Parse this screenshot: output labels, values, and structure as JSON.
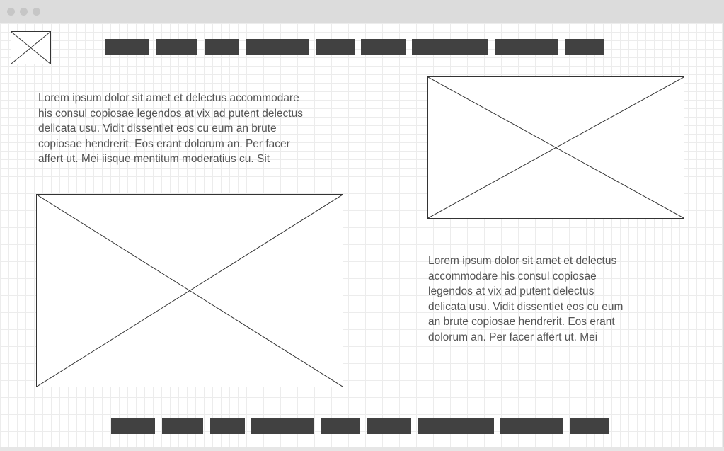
{
  "window": {
    "title_bar_color": "#dcdcdc",
    "traffic_light_color": "#c6c6c6"
  },
  "theme": {
    "grid_line_color": "#ececec",
    "nav_item_color": "#414141",
    "text_color": "#555555",
    "stroke_color": "#333333"
  },
  "header": {
    "logo_icon": "image-placeholder-icon",
    "nav_item_count": 9
  },
  "main": {
    "left_paragraph": {
      "lines": [
        "Lorem ipsum dolor sit amet et delectus accommodare",
        "his consul copiosae legendos at vix ad putent delectus",
        "delicata usu. Vidit dissentiet eos cu eum an brute",
        "copiosae hendrerit. Eos erant dolorum an. Per facer",
        "affert ut. Mei iisque mentitum moderatius cu. Sit"
      ]
    },
    "right_paragraph": {
      "lines": [
        "Lorem ipsum dolor sit amet et delectus",
        "accommodare his consul copiosae",
        "legendos at vix ad putent delectus",
        "delicata usu. Vidit dissentiet eos cu eum",
        "an brute copiosae hendrerit. Eos erant",
        "dolorum an. Per facer affert ut. Mei"
      ]
    },
    "left_image_icon": "image-placeholder-icon",
    "right_image_icon": "image-placeholder-icon"
  },
  "footer": {
    "nav_item_count": 9
  }
}
